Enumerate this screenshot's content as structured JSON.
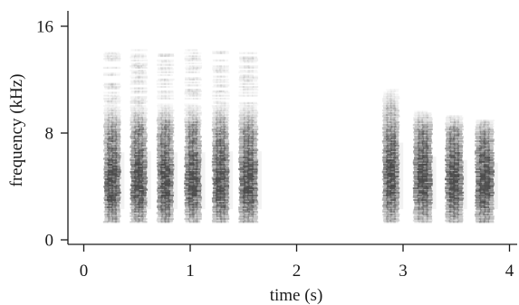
{
  "chart_data": {
    "type": "heatmap",
    "title": "",
    "xlabel": "time (s)",
    "ylabel": "frequency (kHz)",
    "xlim": [
      0,
      4.1
    ],
    "ylim": [
      0,
      16
    ],
    "xticks": [
      {
        "value": 0,
        "label": "0"
      },
      {
        "value": 1,
        "label": "1"
      },
      {
        "value": 2,
        "label": "2"
      },
      {
        "value": 3,
        "label": "3"
      },
      {
        "value": 4,
        "label": "4"
      }
    ],
    "yticks": [
      {
        "value": 0,
        "label": "0"
      },
      {
        "value": 8,
        "label": "8"
      },
      {
        "value": 16,
        "label": "16"
      }
    ],
    "color": "#4a4a4a",
    "syllables": [
      {
        "start": 0.19,
        "end": 0.33,
        "fmin": 1.3,
        "fmax": 10.1,
        "peak_kHz": 4.1,
        "harmonic_top": 14.0
      },
      {
        "start": 0.44,
        "end": 0.58,
        "fmin": 1.3,
        "fmax": 10.2,
        "peak_kHz": 4.1,
        "harmonic_top": 14.3
      },
      {
        "start": 0.69,
        "end": 0.83,
        "fmin": 1.3,
        "fmax": 10.1,
        "peak_kHz": 4.1,
        "harmonic_top": 14.0
      },
      {
        "start": 0.95,
        "end": 1.09,
        "fmin": 1.3,
        "fmax": 10.1,
        "peak_kHz": 4.1,
        "harmonic_top": 14.2
      },
      {
        "start": 1.21,
        "end": 1.35,
        "fmin": 1.3,
        "fmax": 10.2,
        "peak_kHz": 4.1,
        "harmonic_top": 14.1
      },
      {
        "start": 1.46,
        "end": 1.62,
        "fmin": 1.3,
        "fmax": 10.2,
        "peak_kHz": 4.1,
        "harmonic_top": 14.0
      },
      {
        "start": 2.81,
        "end": 2.95,
        "fmin": 1.3,
        "fmax": 11.2,
        "peak_kHz": 4.4,
        "harmonic_top": 11.4
      },
      {
        "start": 3.1,
        "end": 3.26,
        "fmin": 1.3,
        "fmax": 9.6,
        "peak_kHz": 4.3,
        "harmonic_top": 9.8
      },
      {
        "start": 3.4,
        "end": 3.55,
        "fmin": 1.3,
        "fmax": 9.2,
        "peak_kHz": 4.2,
        "harmonic_top": 9.4
      },
      {
        "start": 3.68,
        "end": 3.84,
        "fmin": 1.3,
        "fmax": 8.9,
        "peak_kHz": 4.1,
        "harmonic_top": 9.0
      }
    ]
  }
}
